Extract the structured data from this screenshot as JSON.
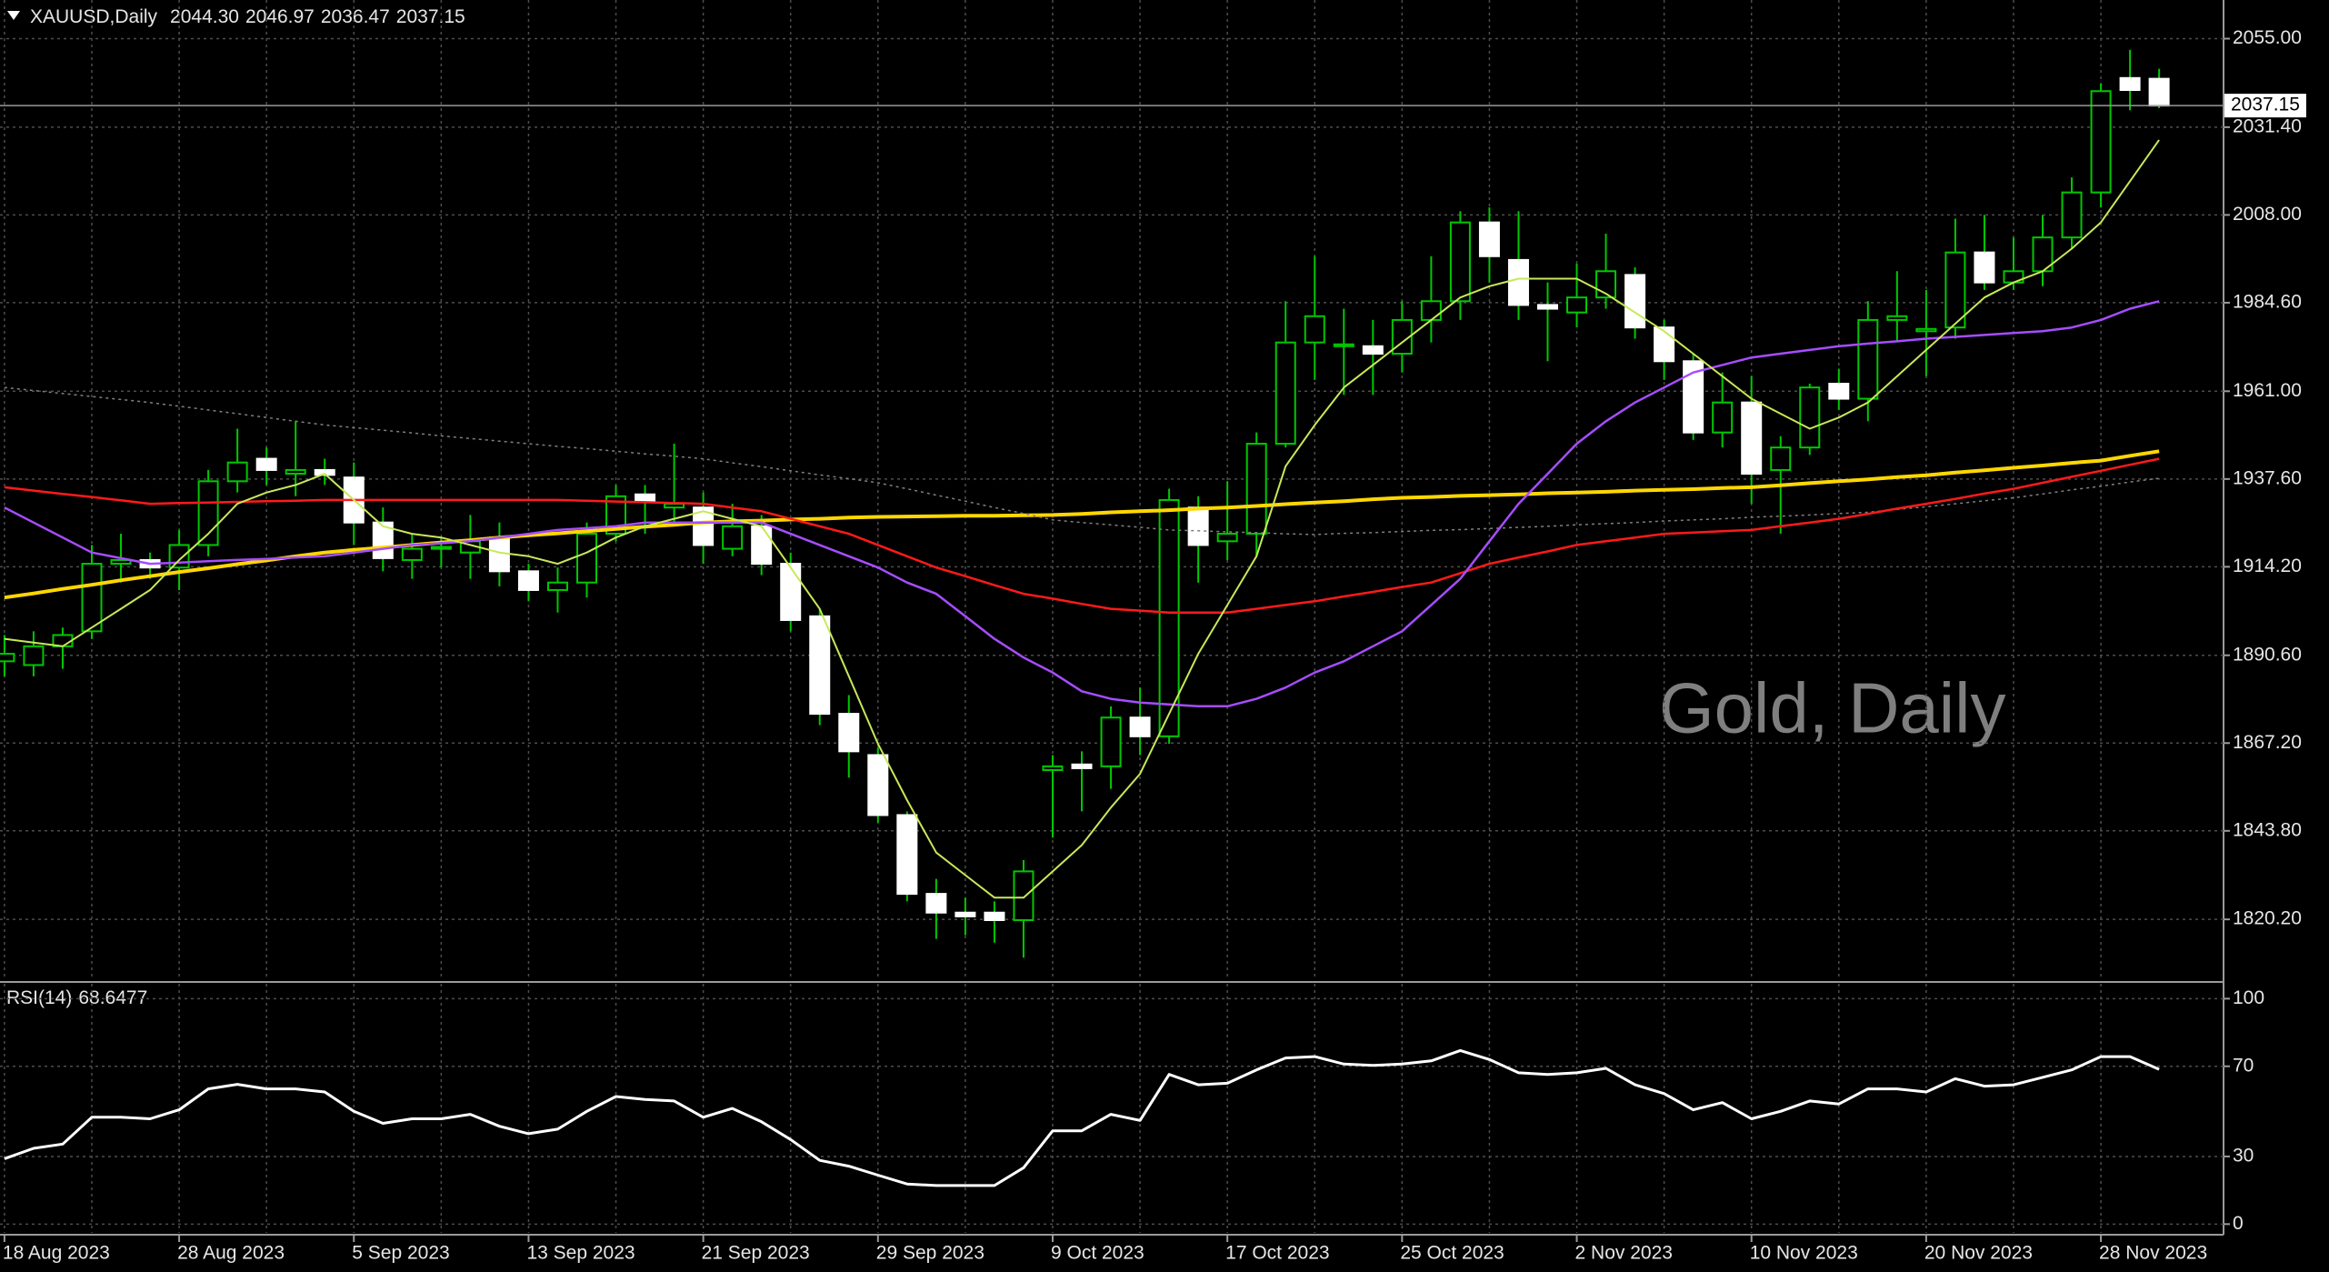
{
  "chart_data": [
    {
      "type": "candlestick",
      "title": "XAUUSD,Daily",
      "last_bar_labels": [
        "2044.30",
        "2046.97",
        "2036.47",
        "2037.15"
      ],
      "watermark": "Gold, Daily",
      "categories": [
        "18 Aug 2023",
        null,
        null,
        null,
        null,
        null,
        "28 Aug 2023",
        null,
        null,
        null,
        null,
        null,
        "5 Sep 2023",
        null,
        null,
        null,
        null,
        null,
        "13 Sep 2023",
        null,
        null,
        null,
        null,
        null,
        "21 Sep 2023",
        null,
        null,
        null,
        null,
        null,
        "29 Sep 2023",
        null,
        null,
        null,
        null,
        null,
        "9 Oct 2023",
        null,
        null,
        null,
        null,
        null,
        "17 Oct 2023",
        null,
        null,
        null,
        null,
        null,
        "25 Oct 2023",
        null,
        null,
        null,
        null,
        null,
        "2 Nov 2023",
        null,
        null,
        null,
        null,
        null,
        "10 Nov 2023",
        null,
        null,
        null,
        null,
        null,
        "20 Nov 2023",
        null,
        null,
        null,
        null,
        null,
        "28 Nov 2023",
        null,
        null
      ],
      "open": [
        1889,
        1888,
        1893,
        1897,
        1915,
        1916,
        1914,
        1920,
        1937,
        1943,
        1939,
        1940,
        1938,
        1926,
        1916,
        1919,
        1918,
        1922,
        1913,
        1908,
        1910,
        1923,
        1933.5,
        1930,
        1930,
        1919,
        1925,
        1915,
        1901,
        1875,
        1864,
        1848,
        1827,
        1822,
        1822,
        1820,
        1860,
        1861.5,
        1861,
        1874,
        1869,
        1930,
        1921,
        1923,
        1947,
        1974,
        1973,
        1973,
        1971,
        1980,
        1985,
        2006,
        1996,
        1984,
        1982,
        1986,
        1992,
        1978,
        1969,
        1950,
        1958,
        1940,
        1946,
        1963,
        1959,
        1980,
        1977,
        1978,
        1998,
        1990,
        1993,
        2002,
        2014,
        2044.5,
        2044.3
      ],
      "high": [
        1896,
        1897,
        1898,
        1920,
        1923,
        1918,
        1924,
        1940,
        1951,
        1946,
        1953,
        1943,
        1942,
        1930,
        1923,
        1922,
        1928,
        1926,
        1915,
        1914,
        1926,
        1936,
        1936,
        1947,
        1934,
        1931,
        1928,
        1918,
        1903,
        1880,
        1866,
        1849,
        1831,
        1826,
        1825,
        1836,
        1864,
        1865,
        1877,
        1882,
        1935,
        1933,
        1937,
        1950,
        1985,
        1997,
        1983,
        1980,
        1985,
        1997,
        2009,
        2010,
        2009,
        1990,
        1995,
        2003,
        1994,
        1980,
        1971,
        1966,
        1965,
        1949,
        1963,
        1967,
        1985,
        1993,
        1988,
        2007,
        2008,
        2002,
        2008,
        2018,
        2043,
        2052,
        2046.97
      ],
      "low": [
        1885,
        1885,
        1887,
        1895,
        1910,
        1911,
        1908,
        1917,
        1934,
        1936,
        1933,
        1936,
        1920,
        1913,
        1911,
        1914,
        1911,
        1909,
        1905,
        1902,
        1906,
        1921,
        1923,
        1926,
        1915,
        1917,
        1912,
        1897,
        1872,
        1858,
        1846,
        1825,
        1815,
        1816,
        1814,
        1810,
        1842,
        1849,
        1855,
        1864,
        1867,
        1910,
        1916,
        1917,
        1946,
        1964,
        1960,
        1960,
        1966,
        1974,
        1980,
        1990,
        1980,
        1969,
        1978,
        1983,
        1975,
        1964,
        1948,
        1946,
        1931,
        1923,
        1944,
        1956,
        1953,
        1974,
        1965,
        1975,
        1988,
        1988,
        1989,
        1999,
        2010,
        2035.9,
        2036.47
      ],
      "close": [
        1891,
        1893,
        1896,
        1915,
        1916,
        1914,
        1920,
        1937,
        1942,
        1940,
        1940,
        1938.7,
        1926,
        1916.5,
        1919,
        1919.5,
        1921,
        1913,
        1908,
        1910,
        1923,
        1933,
        1931.5,
        1931,
        1920,
        1925,
        1915,
        1900,
        1875,
        1865,
        1848,
        1827,
        1822,
        1821,
        1820,
        1833,
        1861,
        1860.5,
        1874,
        1869,
        1932,
        1920,
        1923,
        1947,
        1974,
        1981,
        1973.5,
        1971,
        1980,
        1985,
        2006,
        1997,
        1984,
        1983,
        1986,
        1993,
        1978,
        1969,
        1950,
        1958,
        1939,
        1946,
        1962,
        1959,
        1980,
        1981,
        1977.6,
        1998,
        1990,
        1993,
        2002,
        2014,
        2041,
        2041.3,
        2037.15
      ],
      "up_color": "#00c800",
      "bull_body_color": "#000000",
      "bear_body_color": "#ffffff",
      "lines": [
        {
          "color": "#ffd700",
          "width": 4,
          "values": [
            1906,
            1907.1,
            1908.3,
            1909.4,
            1910.6,
            1911.7,
            1912.8,
            1913.8,
            1914.9,
            1915.9,
            1917,
            1918,
            1918.7,
            1919.3,
            1920,
            1920.7,
            1921.3,
            1922,
            1922.6,
            1923.1,
            1923.7,
            1924.3,
            1924.9,
            1925.4,
            1926,
            1926.3,
            1926.5,
            1926.8,
            1927,
            1927.3,
            1927.5,
            1927.6,
            1927.7,
            1927.8,
            1927.8,
            1927.9,
            1928,
            1928.3,
            1928.7,
            1929,
            1929.3,
            1929.7,
            1930,
            1930.4,
            1930.9,
            1931.3,
            1931.7,
            1932.2,
            1932.6,
            1932.8,
            1933.1,
            1933.3,
            1933.5,
            1933.8,
            1934,
            1934.2,
            1934.5,
            1934.7,
            1934.9,
            1935.2,
            1935.4,
            1935.9,
            1936.5,
            1937,
            1937.5,
            1938.1,
            1938.6,
            1939.3,
            1939.9,
            1940.6,
            1941.2,
            1941.9,
            1942.5,
            1943.8,
            1945
          ]
        },
        {
          "color": "#808080",
          "width": 1.5,
          "dash": "3 4",
          "values": [
            1962,
            1961.2,
            1960.4,
            1959.6,
            1958.8,
            1958,
            1957,
            1956,
            1955,
            1954,
            1953,
            1952,
            1951.3,
            1950.6,
            1949.9,
            1949.1,
            1948.4,
            1947.7,
            1947,
            1946.3,
            1945.7,
            1945,
            1944.3,
            1943.7,
            1943,
            1941.9,
            1940.9,
            1939.8,
            1938.7,
            1937.7,
            1936.6,
            1935,
            1933.3,
            1931.7,
            1930,
            1928.4,
            1926.7,
            1926,
            1925.4,
            1924.7,
            1924,
            1923.8,
            1923.5,
            1923.3,
            1923,
            1922.8,
            1923.1,
            1923.3,
            1923.6,
            1923.9,
            1924.1,
            1924.4,
            1924.7,
            1925,
            1925.4,
            1925.7,
            1926,
            1926.4,
            1926.7,
            1927,
            1927.4,
            1927.7,
            1928,
            1928.4,
            1928.7,
            1929.5,
            1930.2,
            1931,
            1931.8,
            1932.6,
            1933.6,
            1934.7,
            1935.7,
            1936.8,
            1937.8
          ]
        },
        {
          "color": "#ff1a1a",
          "width": 2.5,
          "values": [
            1935.4,
            1934.5,
            1933.6,
            1932.8,
            1931.9,
            1931,
            1931.2,
            1931.3,
            1931.5,
            1931.7,
            1931.8,
            1932,
            1932,
            1932,
            1932,
            1932,
            1932,
            1932,
            1932,
            1932,
            1931.8,
            1931.6,
            1931.4,
            1931.2,
            1931,
            1930,
            1929,
            1927,
            1925,
            1923,
            1920,
            1917,
            1914,
            1911.7,
            1909.3,
            1907,
            1905.7,
            1904.3,
            1903,
            1902.5,
            1902,
            1902,
            1902,
            1903,
            1904,
            1905,
            1906.3,
            1907.5,
            1908.8,
            1910,
            1912.5,
            1915,
            1916.7,
            1918.3,
            1920,
            1921,
            1922,
            1923,
            1923.3,
            1923.7,
            1924,
            1925,
            1926,
            1927,
            1928.3,
            1929.7,
            1931,
            1932.3,
            1933.7,
            1935,
            1936.6,
            1938.2,
            1939.8,
            1941.4,
            1943
          ]
        },
        {
          "color": "#a64dff",
          "width": 2.5,
          "values": [
            1930,
            1926,
            1922,
            1918,
            1916.5,
            1915,
            1915.3,
            1915.7,
            1916,
            1916.3,
            1916.7,
            1917,
            1918,
            1919,
            1920,
            1920.5,
            1921,
            1922,
            1923,
            1924,
            1924.5,
            1925,
            1926,
            1926,
            1926,
            1926,
            1926,
            1923,
            1920,
            1917,
            1914,
            1910,
            1907,
            1901,
            1895,
            1890,
            1886,
            1881,
            1879,
            1878,
            1877.5,
            1877,
            1877,
            1879,
            1882,
            1886,
            1889,
            1893,
            1897,
            1904,
            1911,
            1921,
            1931,
            1939,
            1947,
            1953,
            1958,
            1962,
            1966,
            1968,
            1970,
            1971,
            1972,
            1973,
            1973.7,
            1974.3,
            1975,
            1975.5,
            1976,
            1976.5,
            1977,
            1978,
            1980,
            1983,
            1985
          ]
        },
        {
          "color": "#c8e85a",
          "width": 2,
          "values": [
            1895,
            1894,
            1893,
            1898,
            1903,
            1908,
            1916,
            1923,
            1931,
            1934,
            1936,
            1939,
            1932,
            1925,
            1923,
            1922,
            1920,
            1918,
            1917,
            1915,
            1918,
            1922,
            1925,
            1927,
            1929,
            1927,
            1925,
            1914,
            1903,
            1885,
            1867,
            1852,
            1838,
            1832,
            1826,
            1826,
            1833,
            1840,
            1850,
            1859,
            1875,
            1891,
            1904,
            1917,
            1941,
            1952,
            1962,
            1968,
            1974,
            1980,
            1986,
            1989,
            1991,
            1991,
            1991,
            1987,
            1982,
            1977,
            1971,
            1965,
            1959,
            1955,
            1951,
            1954,
            1958,
            1965,
            1972,
            1979,
            1986,
            1990,
            1993,
            1999,
            2006,
            2017,
            2028
          ]
        }
      ],
      "ylim": [
        1804.0,
        2065.3
      ],
      "yticks": [
        {
          "value": 2055,
          "label": "2055.00"
        },
        {
          "value": 2031.4,
          "label": "2031.40"
        },
        {
          "value": 2008,
          "label": "2008.00"
        },
        {
          "value": 1984.6,
          "label": "1984.60"
        },
        {
          "value": 1961,
          "label": "1961.00"
        },
        {
          "value": 1937.6,
          "label": "1937.60"
        },
        {
          "value": 1914.2,
          "label": "1914.20"
        },
        {
          "value": 1890.6,
          "label": "1890.60"
        },
        {
          "value": 1867.2,
          "label": "1867.20"
        },
        {
          "value": 1843.8,
          "label": "1843.80"
        },
        {
          "value": 1820.2,
          "label": "1820.20"
        }
      ],
      "grid": true
    },
    {
      "type": "line",
      "title": "RSI(14)",
      "series": [
        {
          "color": "#ffffff",
          "values": [
            29,
            33.6,
            35.5,
            47.4,
            47.4,
            46.7,
            50.7,
            60,
            62,
            60,
            60,
            58.6,
            50,
            44.7,
            46.7,
            46.7,
            48.7,
            43.4,
            40.1,
            42.1,
            50,
            56.6,
            55.3,
            54.6,
            47.4,
            51.3,
            45.4,
            37.5,
            28.3,
            25.7,
            21.7,
            17.8,
            17.1,
            17.1,
            17.1,
            25,
            41.4,
            41.4,
            48.7,
            46,
            66.4,
            61.8,
            62.5,
            68.4,
            73.7,
            74.3,
            71,
            70.4,
            71,
            72.4,
            77,
            73,
            67.1,
            66.4,
            67.1,
            69.1,
            61.8,
            57.9,
            50.7,
            53.9,
            46.7,
            50,
            54.6,
            53.3,
            60,
            60,
            58.6,
            64.5,
            61.2,
            61.8,
            65.1,
            68.4,
            74.3,
            74.3,
            68.6477
          ]
        }
      ],
      "ylim": [
        -3.9,
        106.6
      ],
      "yticks": [
        0,
        30,
        70,
        100
      ],
      "grid": true
    }
  ]
}
